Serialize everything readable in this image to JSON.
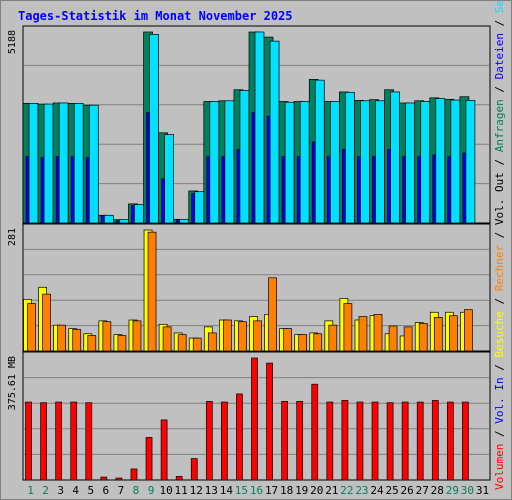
{
  "chart_data": {
    "type": "bar",
    "title": "Tages-Statistik im Monat November 2025",
    "colors": {
      "background": "#c0c0c0",
      "title": "#0000ff",
      "anfragen": "#00805c",
      "dateien": "#0000ff",
      "seiten": "#00e0ff",
      "besuche": "#ffff00",
      "rechner": "#ff8000",
      "volumen": "#ff0000",
      "day_weekday": "#000000",
      "day_weekend": "#00805c"
    },
    "days": [
      "1",
      "2",
      "3",
      "4",
      "5",
      "6",
      "7",
      "8",
      "9",
      "10",
      "11",
      "12",
      "13",
      "14",
      "15",
      "16",
      "17",
      "18",
      "19",
      "20",
      "21",
      "22",
      "23",
      "24",
      "25",
      "26",
      "27",
      "28",
      "29",
      "30",
      "31"
    ],
    "weekend_days": [
      "1",
      "2",
      "8",
      "9",
      "15",
      "16",
      "22",
      "23",
      "29",
      "30"
    ],
    "panels": [
      {
        "id": "requests",
        "scale_label": "5188",
        "max": 5188,
        "legend": [
          {
            "text": "Anfragen",
            "color": "#00805c"
          },
          {
            "text": "Dateien",
            "color": "#0000ff"
          },
          {
            "text": "Seiten",
            "color": "#00e0ff"
          }
        ],
        "legend_separator": " / ",
        "series": [
          {
            "name": "Anfragen",
            "color": "#00805c",
            "values": [
              3250,
              3230,
              3260,
              3250,
              3200,
              210,
              90,
              520,
              5188,
              2450,
              100,
              870,
              3300,
              3320,
              3620,
              5188,
              5050,
              3300,
              3300,
              3900,
              3300,
              3560,
              3330,
              3350,
              3620,
              3260,
              3320,
              3400,
              3360,
              3430,
              null
            ]
          },
          {
            "name": "Dateien",
            "color": "#0000ff",
            "values": [
              1800,
              1780,
              1800,
              1800,
              1780,
              200,
              60,
              480,
              3000,
              1200,
              90,
              800,
              1800,
              1800,
              2000,
              3000,
              2900,
              1800,
              1800,
              2200,
              1800,
              2000,
              1800,
              1800,
              2000,
              1800,
              1800,
              1850,
              1800,
              1900,
              null
            ]
          },
          {
            "name": "Seiten",
            "color": "#00e0ff",
            "values": [
              3250,
              3230,
              3260,
              3250,
              3200,
              210,
              90,
              500,
              5120,
              2400,
              100,
              850,
              3300,
              3320,
              3600,
              5188,
              4940,
              3280,
              3300,
              3880,
              3300,
              3550,
              3320,
              3320,
              3560,
              3260,
              3300,
              3380,
              3340,
              3330,
              null
            ]
          }
        ]
      },
      {
        "id": "visits",
        "scale_label": "281",
        "max": 281,
        "legend": [
          {
            "text": "Besuche",
            "color": "#ffff00"
          },
          {
            "text": "Rechner",
            "color": "#ff8000"
          },
          {
            "text": "Vol. Out",
            "color": "#000000"
          }
        ],
        "legend_separator": " / ",
        "series": [
          {
            "name": "Besuche",
            "color": "#ffff00",
            "values": [
              120,
              148,
              60,
              52,
              40,
              70,
              38,
              72,
              281,
              62,
              42,
              30,
              56,
              72,
              70,
              80,
              85,
              52,
              38,
              42,
              70,
              122,
              72,
              82,
              40,
              35,
              66,
              90,
              90,
              90,
              null
            ]
          },
          {
            "name": "Rechner",
            "color": "#ff8000",
            "values": [
              110,
              132,
              60,
              50,
              36,
              68,
              36,
              70,
              276,
              56,
              38,
              30,
              42,
              72,
              68,
              70,
              170,
              52,
              38,
              40,
              60,
              110,
              80,
              85,
              58,
              56,
              64,
              78,
              82,
              96,
              null
            ]
          }
        ]
      },
      {
        "id": "volume",
        "scale_label": "375.61 MB",
        "max": 375.61,
        "legend": [
          {
            "text": "Volumen",
            "color": "#ff0000"
          },
          {
            "text": "Vol. In",
            "color": "#0000ff"
          }
        ],
        "legend_separator": " / ",
        "series": [
          {
            "name": "Volumen",
            "color": "#ff0000",
            "values": [
              240,
              238,
              240,
              240,
              238,
              9,
              6,
              34,
              131,
              185,
              11,
              66,
              242,
              240,
              265,
              375.61,
              360,
              242,
              242,
              295,
              240,
              245,
              240,
              240,
              238,
              240,
              240,
              245,
              240,
              240,
              null
            ]
          }
        ]
      }
    ]
  }
}
